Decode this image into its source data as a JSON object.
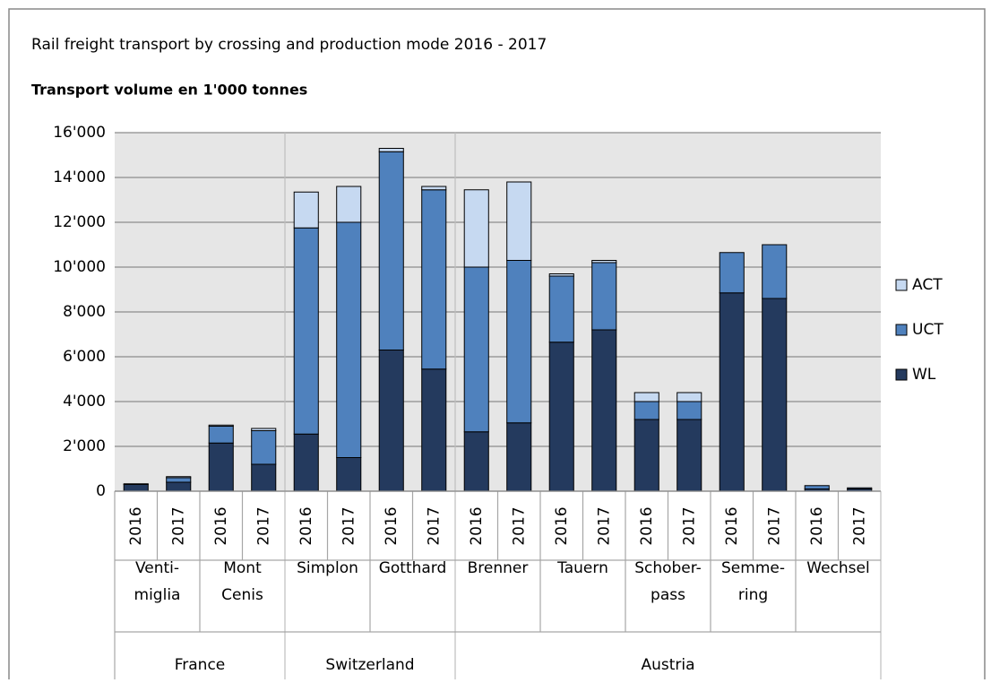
{
  "chart_data": {
    "type": "stacked_bar",
    "title": "Rail freight transport by crossing and production mode 2016 - 2017",
    "subtitle": "Transport volume en 1'000 tonnes",
    "countries": [
      {
        "name": "France",
        "crossings": [
          {
            "name": [
              "Venti-",
              "miglia"
            ],
            "years": [
              "2016",
              "2017"
            ]
          },
          {
            "name": [
              "Mont",
              "Cenis"
            ],
            "years": [
              "2016",
              "2017"
            ]
          }
        ]
      },
      {
        "name": "Switzerland",
        "crossings": [
          {
            "name": [
              "Simplon"
            ],
            "years": [
              "2016",
              "2017"
            ]
          },
          {
            "name": [
              "Gotthard"
            ],
            "years": [
              "2016",
              "2017"
            ]
          }
        ]
      },
      {
        "name": "Austria",
        "crossings": [
          {
            "name": [
              "Brenner"
            ],
            "years": [
              "2016",
              "2017"
            ]
          },
          {
            "name": [
              "Tauern"
            ],
            "years": [
              "2016",
              "2017"
            ]
          },
          {
            "name": [
              "Schober-",
              "pass"
            ],
            "years": [
              "2016",
              "2017"
            ]
          },
          {
            "name": [
              "Semme-",
              "ring"
            ],
            "years": [
              "2016",
              "2017"
            ]
          },
          {
            "name": [
              "Wechsel"
            ],
            "years": [
              "2016",
              "2017"
            ]
          }
        ]
      }
    ],
    "series": [
      {
        "name": "WL",
        "color": "#243a5e",
        "values": [
          300,
          400,
          2150,
          1200,
          2550,
          1500,
          6300,
          5450,
          2650,
          3050,
          6650,
          7200,
          3200,
          3200,
          8850,
          8600,
          100,
          100
        ]
      },
      {
        "name": "UCT",
        "color": "#4f81bd",
        "values": [
          30,
          200,
          750,
          1500,
          9200,
          10500,
          8850,
          8000,
          7350,
          7250,
          2950,
          3000,
          800,
          800,
          1800,
          2400,
          150,
          50
        ]
      },
      {
        "name": "ACT",
        "color": "#c6d9f1",
        "values": [
          0,
          50,
          50,
          100,
          1600,
          1600,
          150,
          150,
          3450,
          3500,
          100,
          100,
          400,
          400,
          0,
          0,
          0,
          0
        ]
      }
    ],
    "ylim": [
      0,
      16000
    ],
    "yticks": [
      0,
      {
        "value": 2000,
        "label": "2'000"
      },
      {
        "value": 4000,
        "label": "4'000"
      },
      {
        "value": 6000,
        "label": "6'000"
      },
      {
        "value": 8000,
        "label": "8'000"
      },
      {
        "value": 10000,
        "label": "10'000"
      },
      {
        "value": 12000,
        "label": "12'000"
      },
      {
        "value": 14000,
        "label": "14'000"
      },
      {
        "value": 16000,
        "label": "16'000"
      }
    ],
    "grid": true,
    "legend": "right"
  }
}
